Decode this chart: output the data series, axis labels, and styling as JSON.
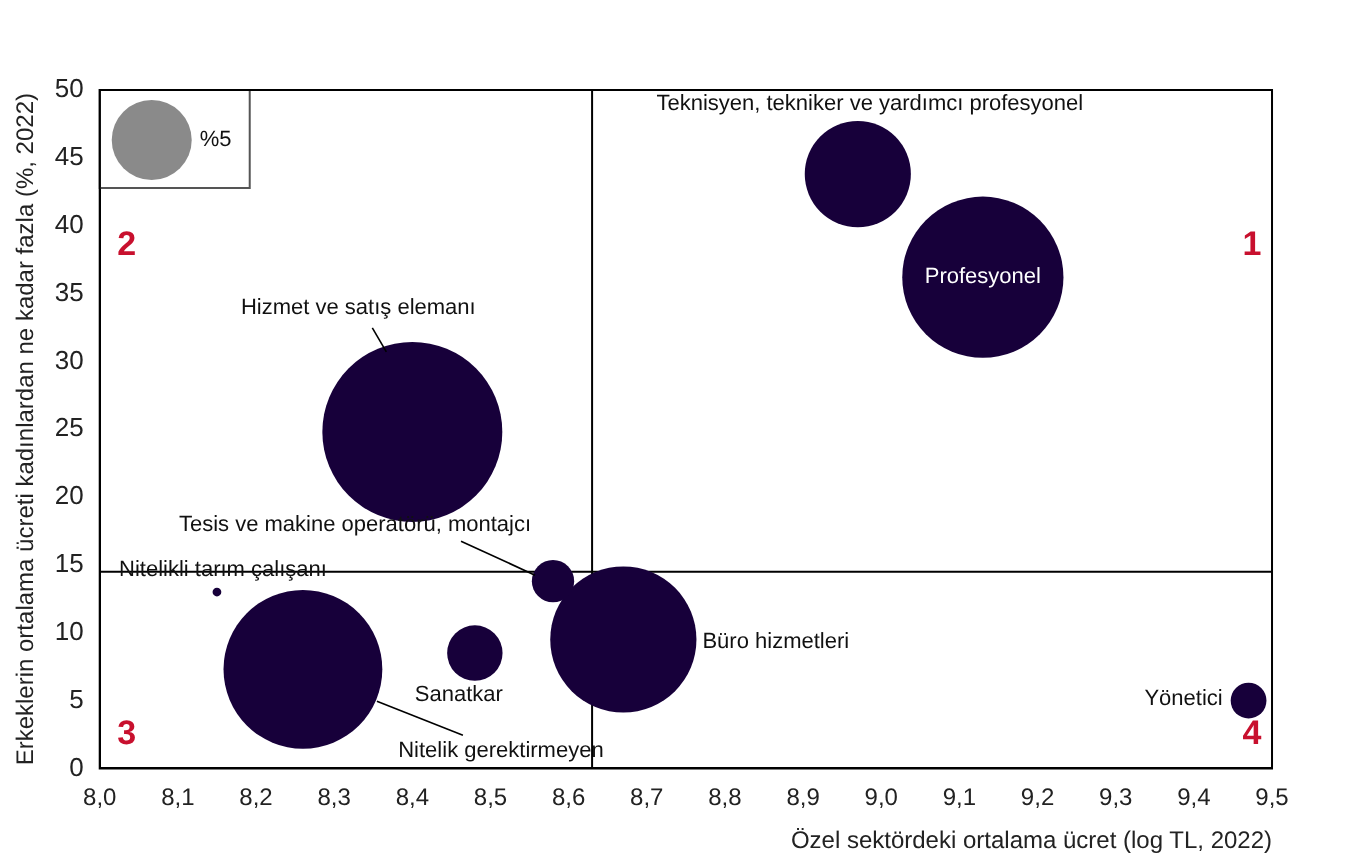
{
  "chart_data": {
    "type": "bubble",
    "xlabel": "Özel sektördeki ortalama ücret (log TL, 2022)",
    "ylabel": "Erkeklerin ortalama ücreti kadınlardan ne kadar fazla (%, 2022)",
    "xlim": [
      8.0,
      9.5
    ],
    "xticks": [
      {
        "value": 8.0,
        "label": "8,0"
      },
      {
        "value": 8.1,
        "label": "8,1"
      },
      {
        "value": 8.2,
        "label": "8,2"
      },
      {
        "value": 8.3,
        "label": "8,3"
      },
      {
        "value": 8.4,
        "label": "8,4"
      },
      {
        "value": 8.5,
        "label": "8,5"
      },
      {
        "value": 8.6,
        "label": "8,6"
      },
      {
        "value": 8.7,
        "label": "8,7"
      },
      {
        "value": 8.8,
        "label": "8,8"
      },
      {
        "value": 8.9,
        "label": "8,9"
      },
      {
        "value": 9.0,
        "label": "9,0"
      },
      {
        "value": 9.1,
        "label": "9,1"
      },
      {
        "value": 9.2,
        "label": "9,2"
      },
      {
        "value": 9.3,
        "label": "9,3"
      },
      {
        "value": 9.4,
        "label": "9,4"
      },
      {
        "value": 9.5,
        "label": "9,5"
      }
    ],
    "ylim": [
      0,
      50
    ],
    "yticks": [
      0,
      5,
      10,
      15,
      20,
      25,
      30,
      35,
      40,
      45,
      50
    ],
    "size_legend": [
      {
        "value": 5,
        "label": "%5"
      }
    ],
    "series": [
      {
        "name": "Teknisyen, tekniker ve yardımcı profesyonel",
        "color": "#17003a",
        "x": [
          8.97
        ],
        "values": [
          43.8
        ],
        "sizes": [
          8.8
        ]
      },
      {
        "name": "Profesyonel",
        "color": "#17003a",
        "x": [
          9.13
        ],
        "values": [
          36.2
        ],
        "sizes": [
          20.3
        ]
      },
      {
        "name": "Hizmet ve satış elemanı",
        "color": "#17003a",
        "x": [
          8.4
        ],
        "values": [
          24.8
        ],
        "sizes": [
          25.3
        ]
      },
      {
        "name": "Tesis ve makine operatörü, montajcı",
        "color": "#17003a",
        "x": [
          8.58
        ],
        "values": [
          13.8
        ],
        "sizes": [
          1.4
        ]
      },
      {
        "name": "Nitelikli tarım çalışanı",
        "color": "#17003a",
        "x": [
          8.15
        ],
        "values": [
          13.0
        ],
        "sizes": [
          0.06
        ]
      },
      {
        "name": "Nitelik gerektirmeyen",
        "color": "#17003a",
        "x": [
          8.26
        ],
        "values": [
          7.3
        ],
        "sizes": [
          19.7
        ]
      },
      {
        "name": "Sanatkar",
        "color": "#17003a",
        "x": [
          8.48
        ],
        "values": [
          8.5
        ],
        "sizes": [
          2.4
        ]
      },
      {
        "name": "Büro hizmetleri",
        "color": "#17003a",
        "x": [
          8.67
        ],
        "values": [
          9.5
        ],
        "sizes": [
          16.7
        ]
      },
      {
        "name": "Yönetici",
        "color": "#17003a",
        "x": [
          9.47
        ],
        "values": [
          5.0
        ],
        "sizes": [
          1.0
        ]
      }
    ],
    "ref_lines": [
      {
        "axis": "x",
        "value": 8.63,
        "color": "#000000"
      },
      {
        "axis": "y",
        "value": 14.5,
        "color": "#000000"
      }
    ],
    "annotations": [
      "1",
      "2",
      "3",
      "4"
    ],
    "grid": false,
    "legend": "top left"
  }
}
